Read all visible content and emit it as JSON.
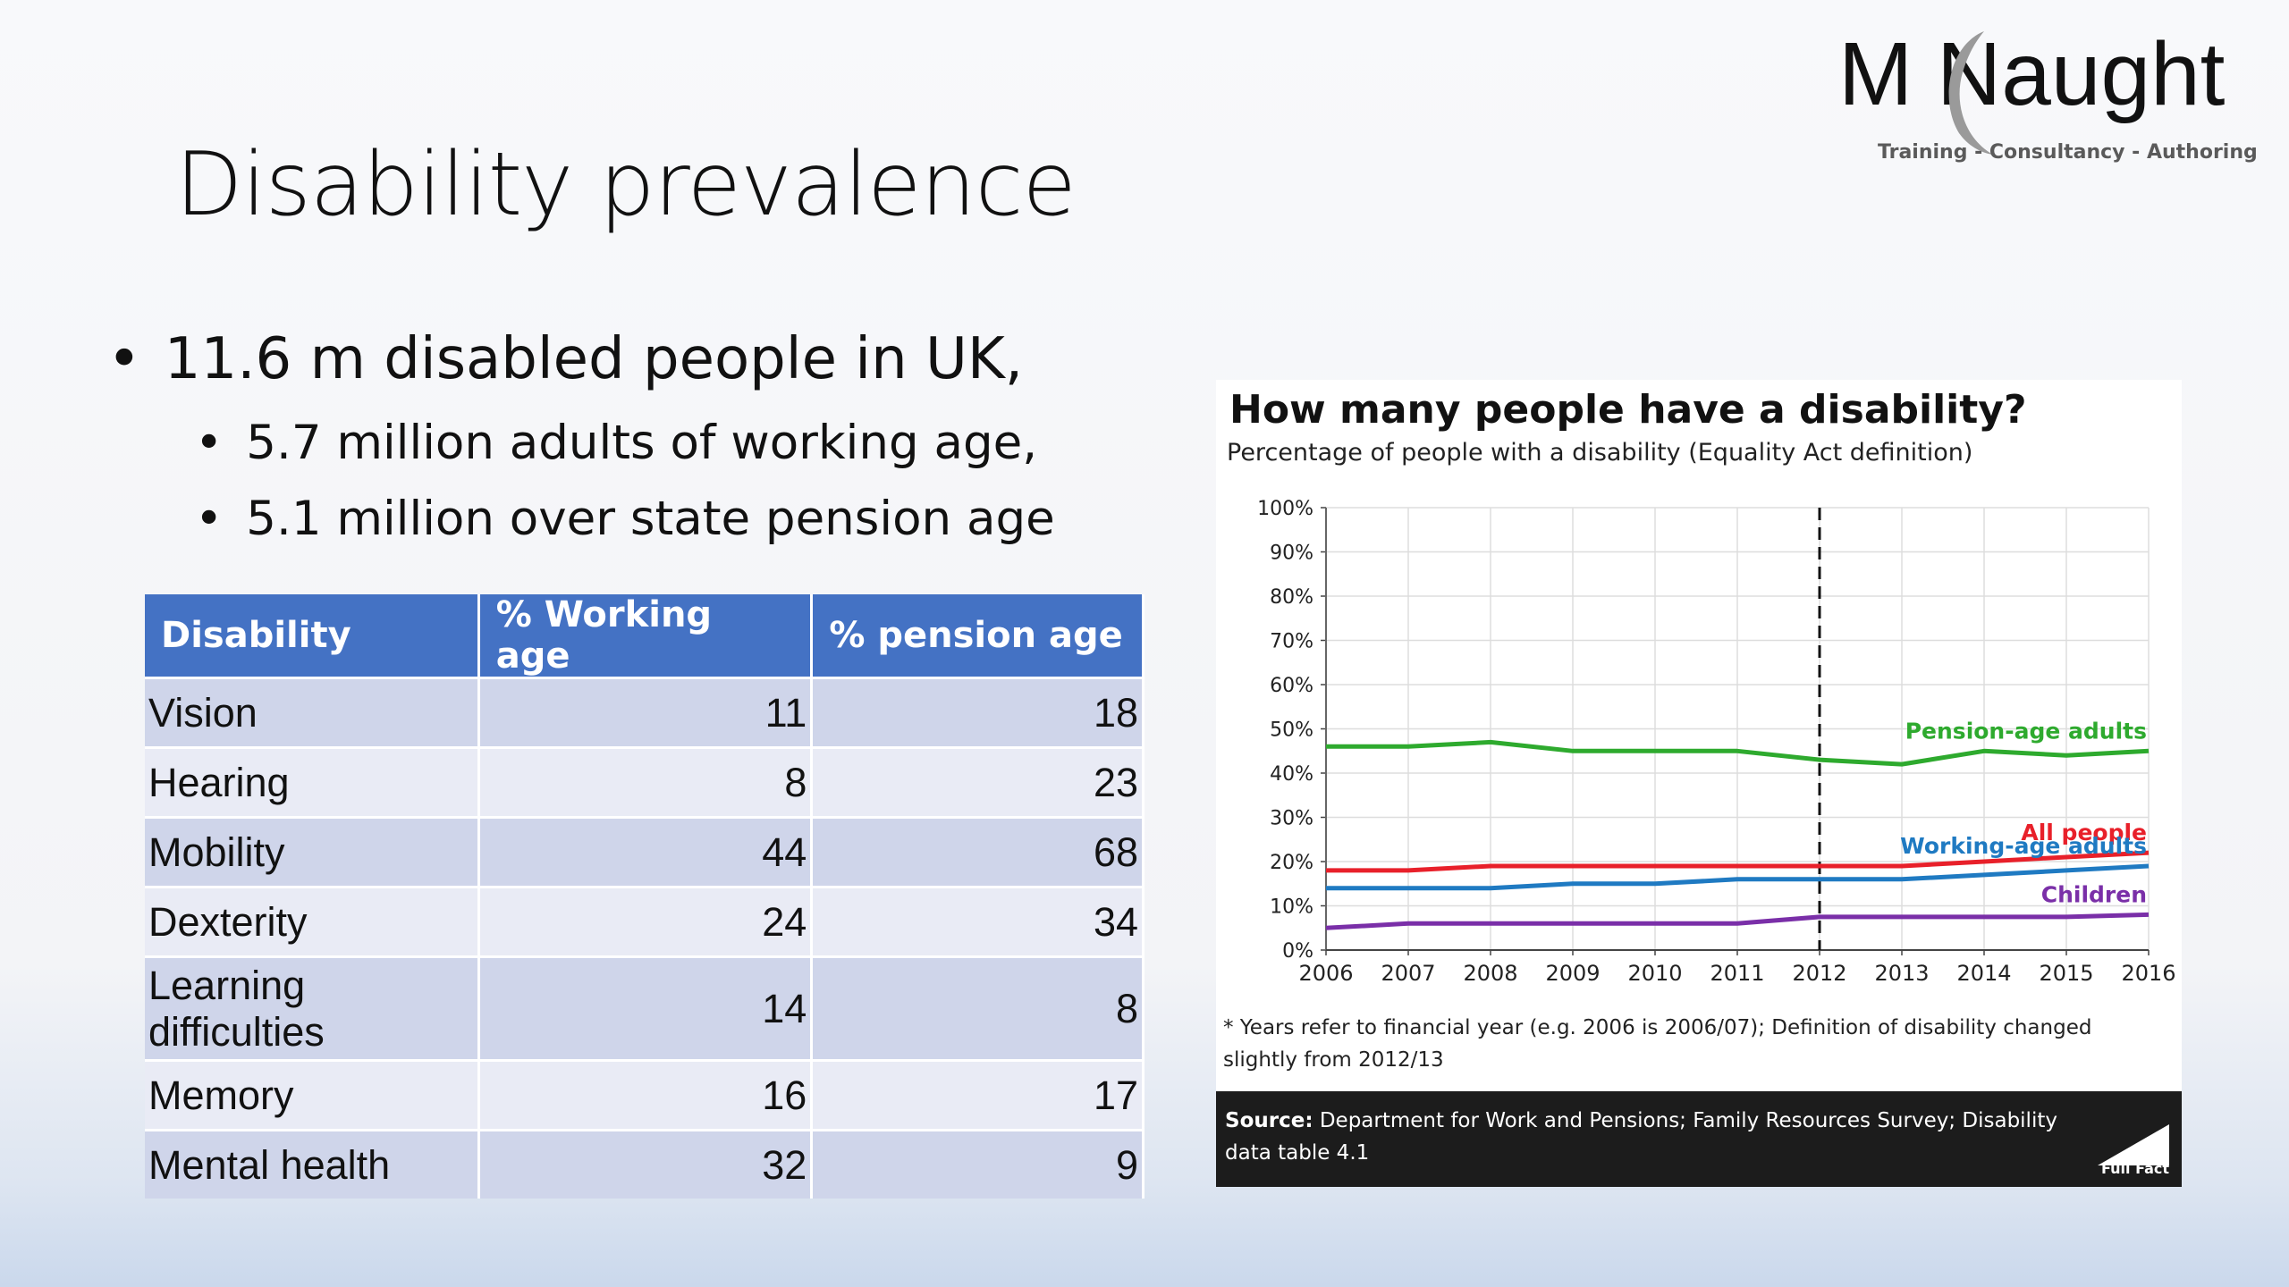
{
  "logo": {
    "name_left": "M",
    "name_right": "Naught",
    "tagline": "Training - Consultancy - Authoring"
  },
  "slide": {
    "title": "Disability prevalence"
  },
  "bullets": {
    "main": "11.6 m disabled people in UK,",
    "sub1": "5.7 million adults of working age,",
    "sub2": "5.1 million over state pension age"
  },
  "table": {
    "headers": [
      "Disability",
      "% Working age",
      "% pension age"
    ],
    "rows": [
      {
        "label": "Vision",
        "working": "11",
        "pension": "18"
      },
      {
        "label": "Hearing",
        "working": "8",
        "pension": "23"
      },
      {
        "label": "Mobility",
        "working": "44",
        "pension": "68"
      },
      {
        "label": "Dexterity",
        "working": "24",
        "pension": "34"
      },
      {
        "label_line1": "Learning",
        "label_line2": "difficulties",
        "working": "14",
        "pension": "8"
      },
      {
        "label": "Memory",
        "working": "16",
        "pension": "17"
      },
      {
        "label": "Mental health",
        "working": "32",
        "pension": "9"
      }
    ]
  },
  "chart_data": {
    "type": "line",
    "title": "How many people have a disability?",
    "subtitle": "Percentage of people with a disability (Equality Act definition)",
    "x": [
      2006,
      2007,
      2008,
      2009,
      2010,
      2011,
      2012,
      2013,
      2014,
      2015,
      2016
    ],
    "x_tick_labels": [
      "2006",
      "2007",
      "2008",
      "2009",
      "2010",
      "2011",
      "2012",
      "2013",
      "2014",
      "2015",
      "2016"
    ],
    "y_tick_labels": [
      "0%",
      "10%",
      "20%",
      "30%",
      "40%",
      "50%",
      "60%",
      "70%",
      "80%",
      "90%",
      "100%"
    ],
    "ylim": [
      0,
      100
    ],
    "grid": true,
    "vertical_marker_x": 2012,
    "series": [
      {
        "name": "Pension-age adults",
        "color": "#2eaa2e",
        "values": [
          46,
          46,
          47,
          45,
          45,
          45,
          43,
          42,
          45,
          44,
          45
        ]
      },
      {
        "name": "All people",
        "color": "#e8202a",
        "values": [
          18,
          18,
          19,
          19,
          19,
          19,
          19,
          19,
          20,
          21,
          22
        ]
      },
      {
        "name": "Working-age adults",
        "color": "#1f7ac2",
        "values": [
          14,
          14,
          14,
          15,
          15,
          16,
          16,
          16,
          17,
          18,
          19
        ]
      },
      {
        "name": "Children",
        "color": "#7a2fa8",
        "values": [
          5,
          6,
          6,
          6,
          6,
          6,
          7.5,
          7.5,
          7.5,
          7.5,
          8
        ]
      }
    ],
    "footnote": "* Years refer to financial year (e.g. 2006 is 2006/07); Definition of disability changed slightly from 2012/13",
    "source_label": "Source:",
    "source_text": "Department for Work and Pensions; Family Resources Survey; Disability data table 4.1",
    "brand": "Full Fact"
  }
}
